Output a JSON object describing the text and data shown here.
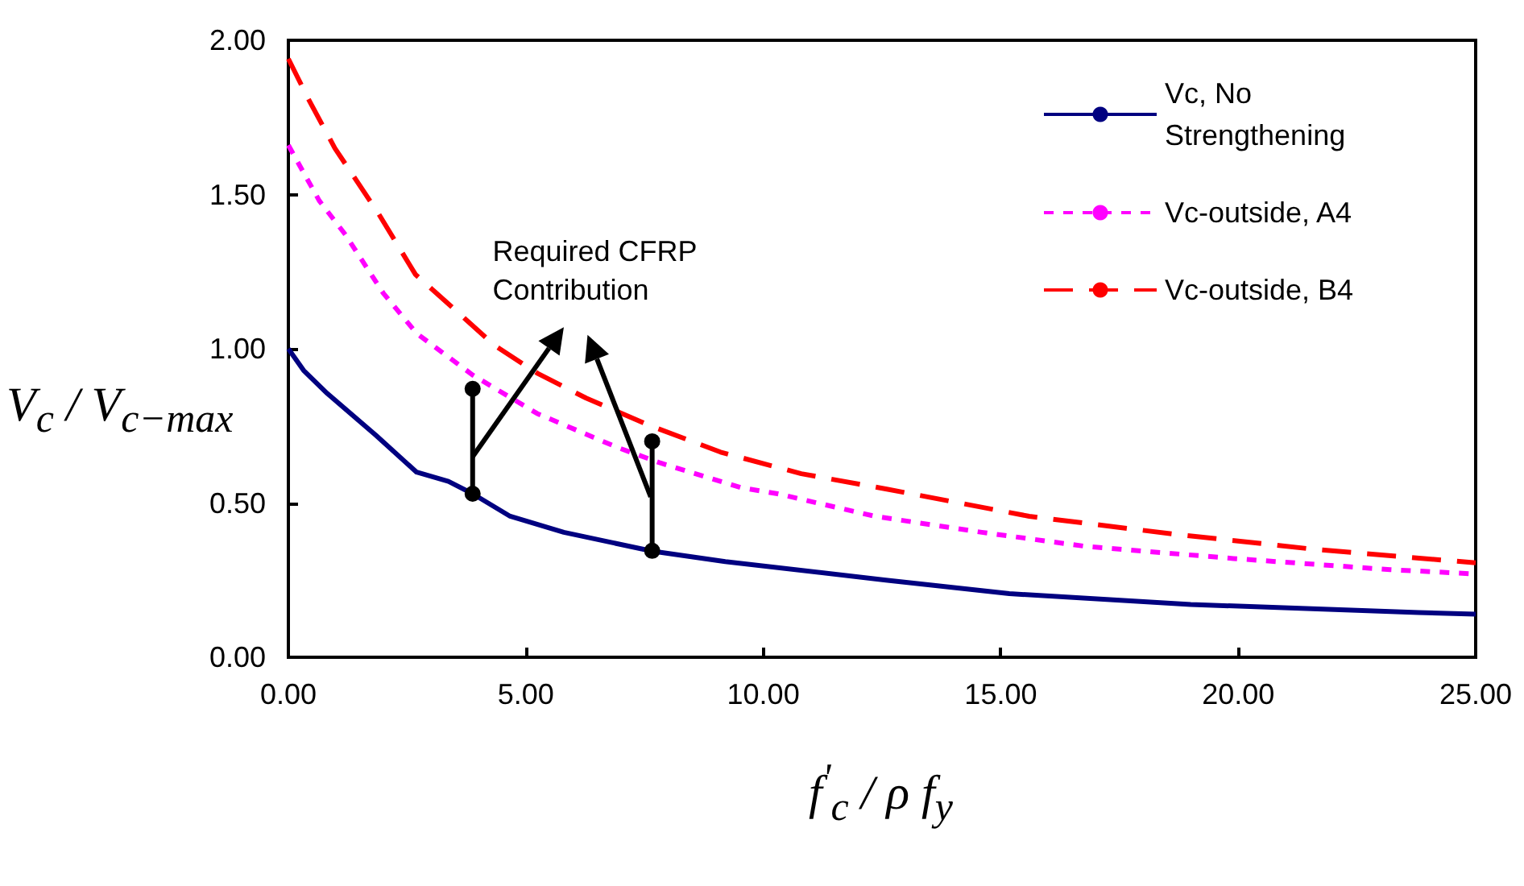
{
  "chart_data": {
    "type": "line",
    "xlabel": "f$^{'}$$_{c}$ / ρ f$_{y}$",
    "ylabel": "V$_{c}$ / V$_{c−max}$",
    "annotations": [
      "Required CFRP Contribution"
    ],
    "xlim": [
      0,
      25
    ],
    "ylim": [
      0,
      2
    ],
    "xticks": [
      {
        "value": 0,
        "label": "0.00"
      },
      {
        "value": 5,
        "label": "5.00"
      },
      {
        "value": 10,
        "label": "10.00"
      },
      {
        "value": 15,
        "label": "15.00"
      },
      {
        "value": 20,
        "label": "20.00"
      },
      {
        "value": 25,
        "label": "25.00"
      }
    ],
    "yticks": [
      {
        "value": 0,
        "label": "0.00"
      },
      {
        "value": 0.5,
        "label": "0.50"
      },
      {
        "value": 1,
        "label": "1.00"
      },
      {
        "value": 1.5,
        "label": "1.50"
      },
      {
        "value": 2,
        "label": "2.00"
      }
    ],
    "grid": false,
    "legend": "top right",
    "marker": "none",
    "series": [
      {
        "name": "Vc, No Strengthening",
        "color": "#000080",
        "line_style": "solid",
        "x": [
          0,
          0.32,
          0.82,
          1.84,
          2.7,
          3.37,
          3.88,
          4.67,
          5.8,
          7.66,
          9.2,
          12.58,
          15.18,
          19.0,
          23.8,
          25
        ],
        "values": [
          1.0,
          0.93,
          0.855,
          0.72,
          0.6,
          0.57,
          0.53,
          0.457,
          0.405,
          0.344,
          0.31,
          0.25,
          0.206,
          0.171,
          0.145,
          0.14
        ]
      },
      {
        "name": "Vc-outside, A4",
        "color": "#ff00ff",
        "line_style": "dotted",
        "x": [
          0,
          0.65,
          1.2,
          2.0,
          2.7,
          3.88,
          5.24,
          6.93,
          7.83,
          9.53,
          10.3,
          12.35,
          14.6,
          16.76,
          19.9,
          23.2,
          25
        ],
        "values": [
          1.66,
          1.48,
          1.37,
          1.18,
          1.05,
          0.915,
          0.79,
          0.68,
          0.63,
          0.55,
          0.53,
          0.457,
          0.405,
          0.36,
          0.32,
          0.284,
          0.27
        ]
      },
      {
        "name": "Vc-outside, B4",
        "color": "#ff0000",
        "line_style": "dashed",
        "x": [
          0,
          0.42,
          0.98,
          1.89,
          2.68,
          3.7,
          4.35,
          5.25,
          6.27,
          7.63,
          9.1,
          10.8,
          12.6,
          15.6,
          18.6,
          21.6,
          25
        ],
        "values": [
          1.94,
          1.81,
          1.65,
          1.44,
          1.24,
          1.1,
          1.01,
          0.92,
          0.84,
          0.75,
          0.665,
          0.595,
          0.545,
          0.457,
          0.4,
          0.35,
          0.306
        ]
      }
    ]
  }
}
